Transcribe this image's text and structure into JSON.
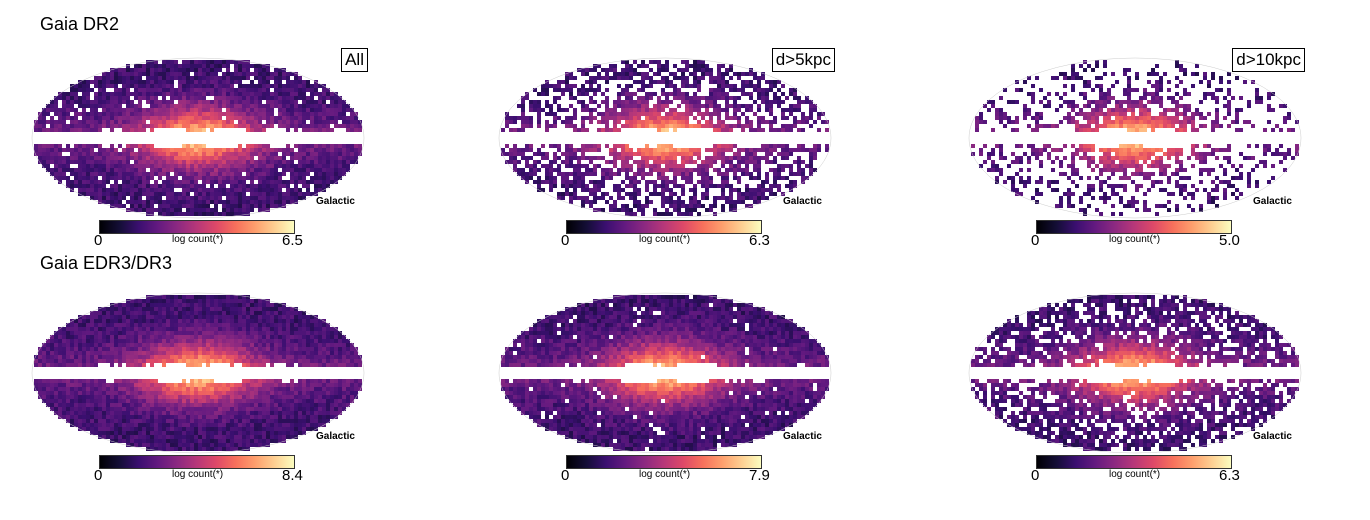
{
  "rows": [
    {
      "title": "Gaia DR2",
      "panels": [
        {
          "selection": "All",
          "coord": "Galactic",
          "cbar_min": "0",
          "cbar_max": "6.5",
          "cbar_label": "log count(*)",
          "density": 0.92
        },
        {
          "selection": "d>5kpc",
          "coord": "Galactic",
          "cbar_min": "0",
          "cbar_max": "6.3",
          "cbar_label": "log count(*)",
          "density": 0.62
        },
        {
          "selection": "d>10kpc",
          "coord": "Galactic",
          "cbar_min": "0",
          "cbar_max": "5.0",
          "cbar_label": "log count(*)",
          "density": 0.3
        }
      ]
    },
    {
      "title": "Gaia EDR3/DR3",
      "panels": [
        {
          "selection": "",
          "coord": "Galactic",
          "cbar_min": "0",
          "cbar_max": "8.4",
          "cbar_label": "log count(*)",
          "density": 1.0
        },
        {
          "selection": "",
          "coord": "Galactic",
          "cbar_min": "0",
          "cbar_max": "7.9",
          "cbar_label": "log count(*)",
          "density": 0.96
        },
        {
          "selection": "",
          "coord": "Galactic",
          "cbar_min": "0",
          "cbar_max": "6.3",
          "cbar_label": "log count(*)",
          "density": 0.72
        }
      ]
    }
  ],
  "colors": {
    "cmap": [
      "#000004",
      "#140e36",
      "#3b0f70",
      "#641a80",
      "#8c2981",
      "#b73779",
      "#de4968",
      "#f7705c",
      "#fe9f6d",
      "#fecf92",
      "#fcfdbf"
    ]
  }
}
